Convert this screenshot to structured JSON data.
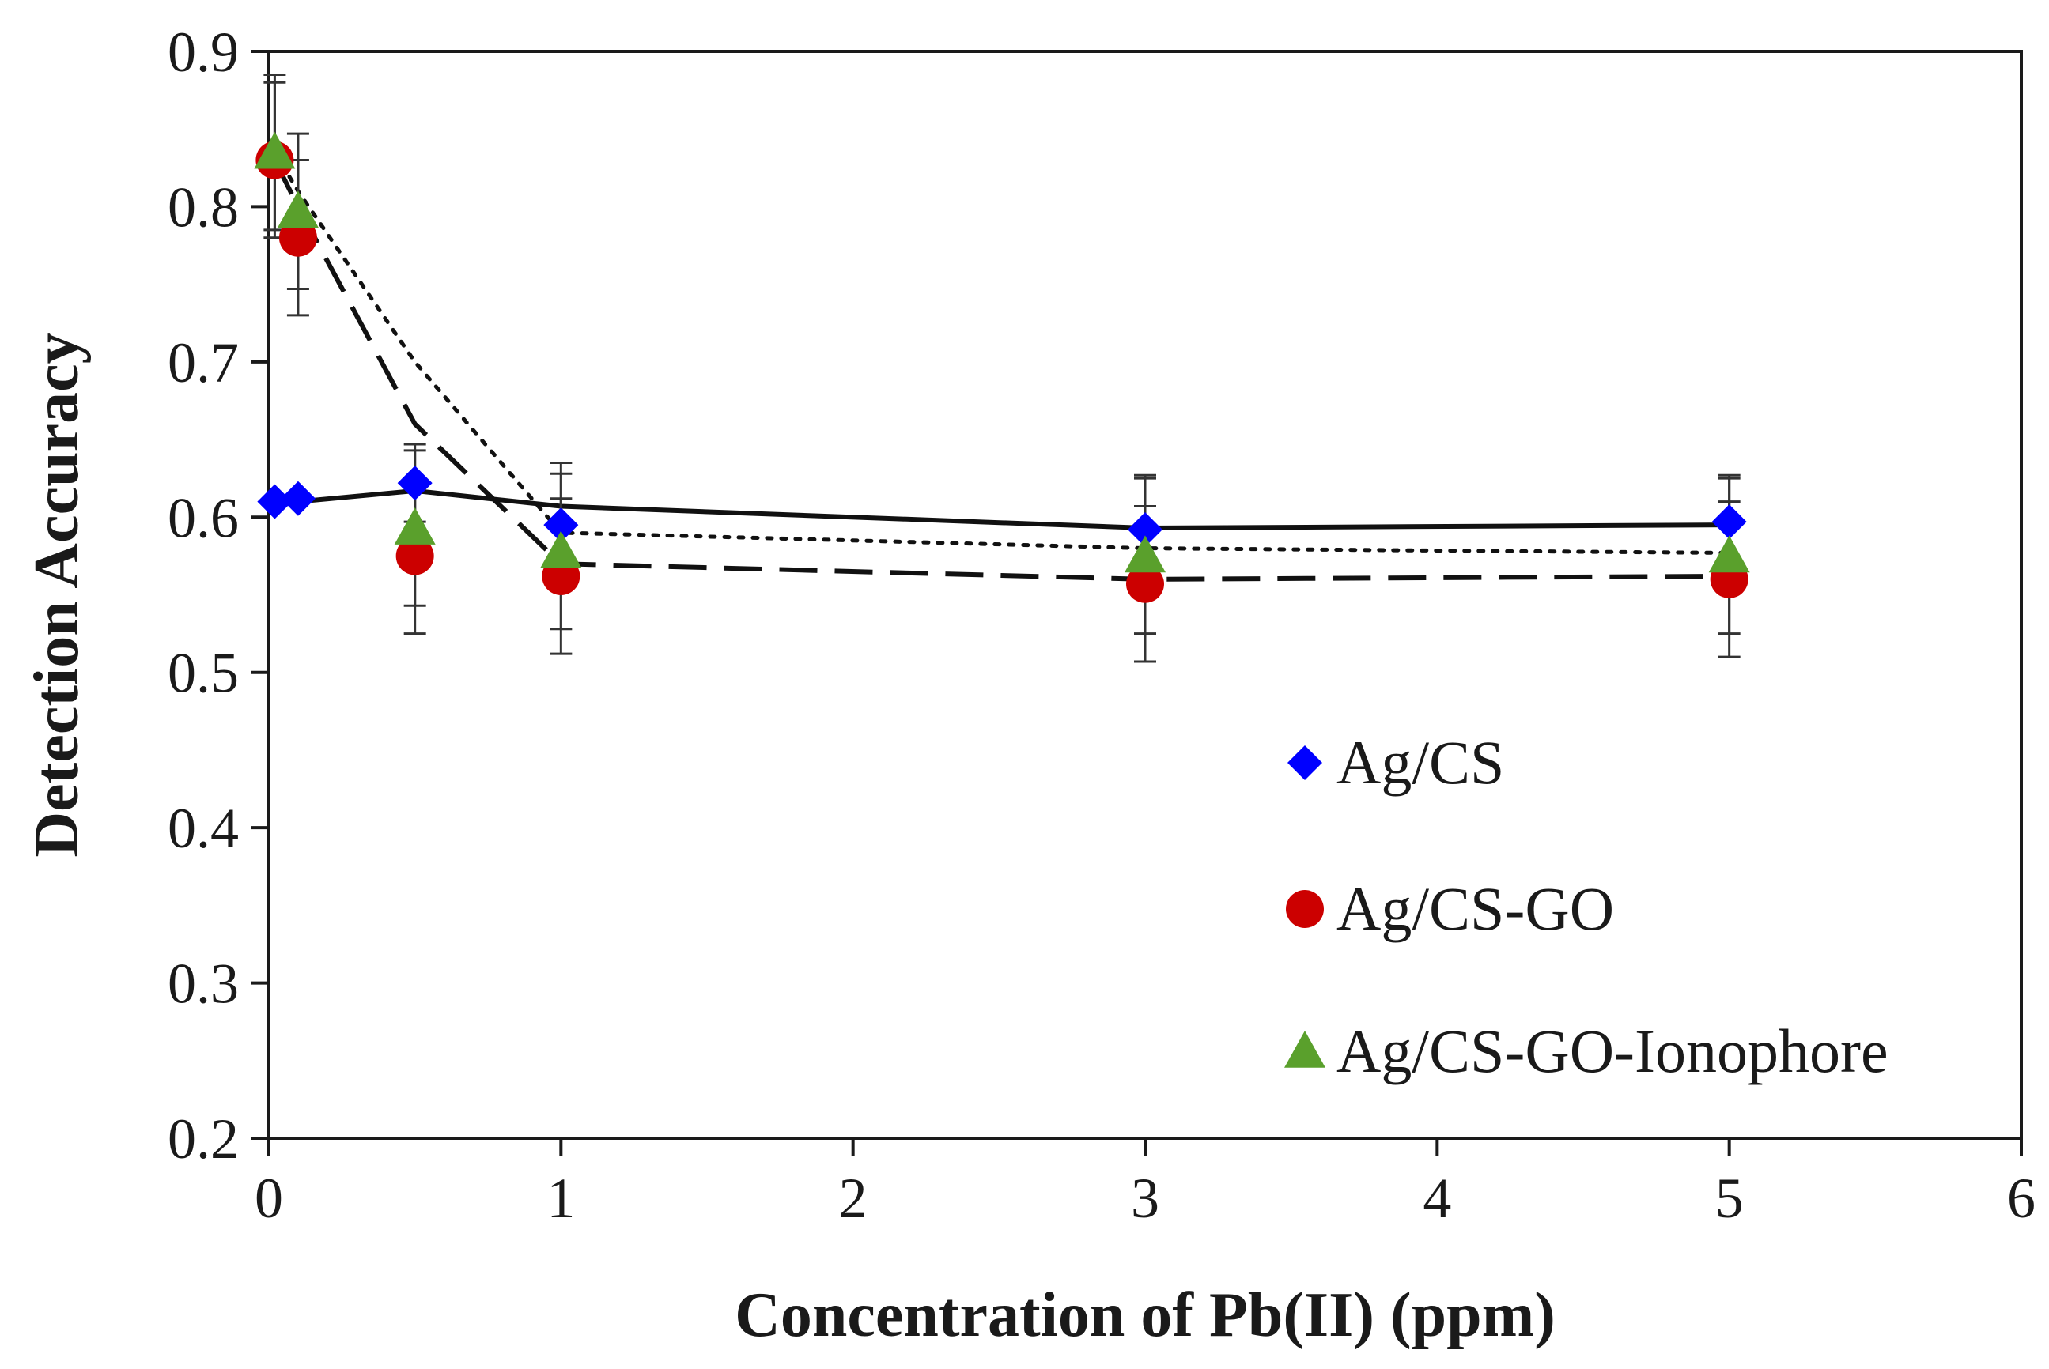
{
  "chart_data": {
    "type": "scatter",
    "title": "",
    "xlabel": "Concentration of Pb(II) (ppm)",
    "ylabel": "Detection Accuracy",
    "xlim": [
      0,
      6
    ],
    "ylim": [
      0.2,
      0.9
    ],
    "xticks": [
      0,
      1,
      2,
      3,
      4,
      5,
      6
    ],
    "yticks": [
      0.2,
      0.3,
      0.4,
      0.5,
      0.6,
      0.7,
      0.8,
      0.9
    ],
    "xtick_labels": [
      "0",
      "1",
      "2",
      "3",
      "4",
      "5",
      "6"
    ],
    "ytick_labels": [
      "0.2",
      "0.3",
      "0.4",
      "0.5",
      "0.6",
      "0.7",
      "0.8",
      "0.9"
    ],
    "grid": false,
    "legend_position": "bottom-right",
    "series": [
      {
        "name": "Ag/CS",
        "marker": "diamond",
        "color": "#0000ff",
        "x": [
          0.02,
          0.1,
          0.5,
          1,
          3,
          5
        ],
        "y": [
          0.61,
          0.612,
          0.622,
          0.595,
          0.592,
          0.597
        ],
        "error": [
          0.0,
          0.0,
          0.025,
          0.04,
          0.035,
          0.03
        ],
        "trend_style": "solid",
        "trend_x": [
          0.02,
          0.1,
          0.5,
          1,
          3,
          5
        ],
        "trend_y": [
          0.61,
          0.61,
          0.617,
          0.607,
          0.593,
          0.595
        ]
      },
      {
        "name": "Ag/CS-GO",
        "marker": "circle",
        "color": "#cc0000",
        "x": [
          0.02,
          0.1,
          0.5,
          1,
          3,
          5
        ],
        "y": [
          0.83,
          0.78,
          0.575,
          0.562,
          0.557,
          0.56
        ],
        "error": [
          0.05,
          0.05,
          0.05,
          0.05,
          0.05,
          0.05
        ],
        "trend_style": "dashed",
        "trend_x": [
          0.02,
          0.1,
          0.5,
          1,
          3,
          5
        ],
        "trend_y": [
          0.83,
          0.8,
          0.66,
          0.57,
          0.56,
          0.562
        ]
      },
      {
        "name": "Ag/CS-GO-Ionophore",
        "marker": "triangle",
        "color": "#5aa02c",
        "x": [
          0.02,
          0.1,
          0.5,
          1,
          3,
          5
        ],
        "y": [
          0.835,
          0.797,
          0.593,
          0.578,
          0.575,
          0.575
        ],
        "error": [
          0.05,
          0.05,
          0.05,
          0.05,
          0.05,
          0.05
        ],
        "trend_style": "dotted",
        "trend_x": [
          0.02,
          0.1,
          0.5,
          1,
          3,
          5
        ],
        "trend_y": [
          0.835,
          0.81,
          0.7,
          0.59,
          0.58,
          0.577
        ]
      }
    ]
  }
}
